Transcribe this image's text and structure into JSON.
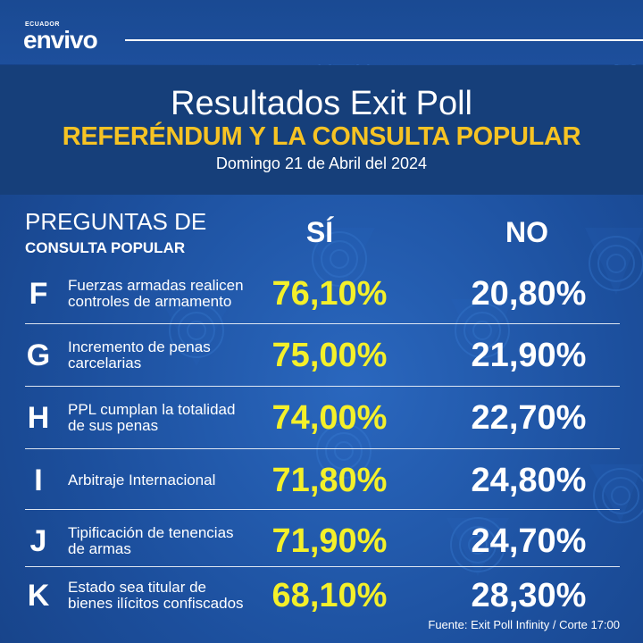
{
  "brand": {
    "small": "ECUADOR",
    "main": "envivo"
  },
  "header": {
    "title": "Resultados Exit Poll",
    "subtitle": "REFERÉNDUM Y LA CONSULTA POPULAR",
    "date": "Domingo 21 de Abril del 2024"
  },
  "columns": {
    "left_line1": "PREGUNTAS DE",
    "left_line2": "CONSULTA POPULAR",
    "si": "SÍ",
    "no": "NO"
  },
  "rows": [
    {
      "letter": "F",
      "desc": "Fuerzas armadas realicen controles de armamento",
      "si": "76,10%",
      "no": "20,80%"
    },
    {
      "letter": "G",
      "desc": "Incremento de penas carcelarias",
      "si": "75,00%",
      "no": "21,90%"
    },
    {
      "letter": "H",
      "desc": "PPL cumplan la totalidad de sus penas",
      "si": "74,00%",
      "no": "22,70%"
    },
    {
      "letter": "I",
      "desc": "Arbitraje Internacional",
      "si": "71,80%",
      "no": "24,80%"
    },
    {
      "letter": "J",
      "desc": "Tipificación de tenencias de armas",
      "si": "71,90%",
      "no": "24,70%"
    },
    {
      "letter": "K",
      "desc": "Estado sea titular de bienes ilícitos confiscados",
      "si": "68,10%",
      "no": "28,30%"
    }
  ],
  "source": "Fuente: Exit Poll Infinity / Corte 17:00",
  "colors": {
    "accent_yellow": "#f6c324",
    "si_yellow": "#f4f02a",
    "background_blue": "#1d4f9c"
  }
}
